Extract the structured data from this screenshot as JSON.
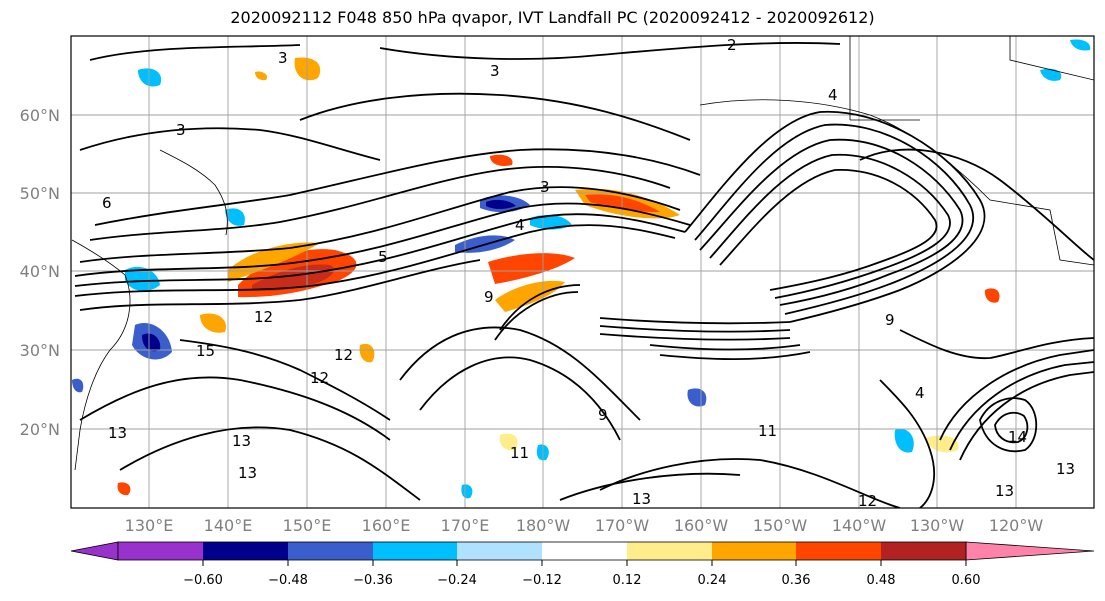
{
  "title": "2020092112 F048 850 hPa qvapor, IVT Landfall PC (2020092412 - 2020092612)",
  "map": {
    "lat_labels": [
      "20°N",
      "30°N",
      "40°N",
      "50°N",
      "60°N"
    ],
    "lon_labels": [
      "130°E",
      "140°E",
      "150°E",
      "160°E",
      "170°E",
      "180°W",
      "170°W",
      "160°W",
      "150°W",
      "140°W",
      "130°W",
      "120°W"
    ],
    "contour_labels": [
      "2",
      "3",
      "3",
      "3",
      "3",
      "4",
      "4",
      "4",
      "5",
      "6",
      "9",
      "9",
      "9",
      "11",
      "11",
      "12",
      "12",
      "12",
      "12",
      "13",
      "13",
      "13",
      "13",
      "13",
      "13",
      "14",
      "15"
    ]
  },
  "colorbar": {
    "colors": [
      "#9932cc",
      "#00008b",
      "#3a5fcd",
      "#00bfff",
      "#b0e2ff",
      "#ffffff",
      "#ffec8b",
      "#ffa500",
      "#ff4500",
      "#b22222",
      "#ff82ab"
    ],
    "tick_labels": [
      "−0.60",
      "−0.48",
      "−0.36",
      "−0.24",
      "−0.12",
      "0.12",
      "0.24",
      "0.36",
      "0.48",
      "0.60"
    ]
  }
}
